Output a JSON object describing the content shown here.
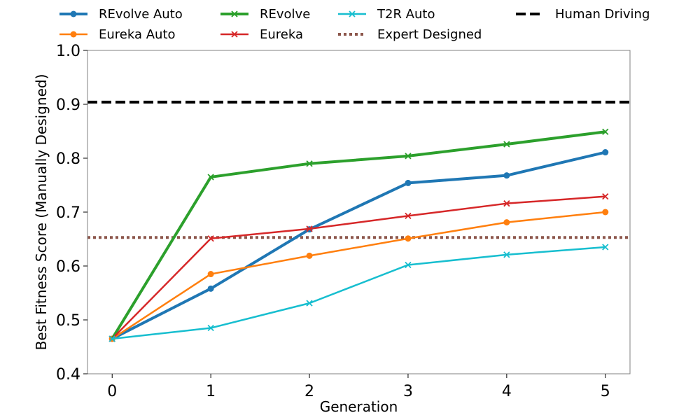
{
  "chart_data": {
    "type": "line",
    "title": "",
    "xlabel": "Generation",
    "ylabel": "Best Fitness Score (Manually Designed)",
    "x": [
      0,
      1,
      2,
      3,
      4,
      5
    ],
    "xlim": [
      -0.25,
      5.25
    ],
    "ylim": [
      0.4,
      1.0
    ],
    "x_ticks": [
      "0",
      "1",
      "2",
      "3",
      "4",
      "5"
    ],
    "y_ticks": [
      "0.4",
      "0.5",
      "0.6",
      "0.7",
      "0.8",
      "0.9",
      "1.0"
    ],
    "grid": false,
    "legend_position": "top",
    "series": [
      {
        "name": "REvolve Auto",
        "color": "#1f77b4",
        "marker": "circle",
        "style": "thick",
        "values": [
          0.465,
          0.558,
          0.668,
          0.754,
          0.768,
          0.811
        ]
      },
      {
        "name": "Eureka Auto",
        "color": "#ff7f0e",
        "marker": "circle",
        "style": "normal",
        "values": [
          0.465,
          0.585,
          0.619,
          0.651,
          0.681,
          0.7
        ]
      },
      {
        "name": "REvolve",
        "color": "#2ca02c",
        "marker": "x",
        "style": "thick",
        "values": [
          0.465,
          0.765,
          0.79,
          0.804,
          0.826,
          0.849
        ]
      },
      {
        "name": "Eureka",
        "color": "#d62728",
        "marker": "x",
        "style": "normal",
        "values": [
          0.465,
          0.651,
          0.669,
          0.693,
          0.716,
          0.729
        ]
      },
      {
        "name": "T2R Auto",
        "color": "#17becf",
        "marker": "x",
        "style": "normal",
        "values": [
          0.465,
          0.485,
          0.531,
          0.602,
          0.621,
          0.635
        ]
      }
    ],
    "reference_lines": [
      {
        "name": "Human Driving",
        "color": "#000000",
        "dash": "dashed",
        "value": 0.904
      },
      {
        "name": "Expert Designed",
        "color": "#8c564b",
        "dash": "dotted",
        "value": 0.653
      }
    ],
    "legend_order": [
      "REvolve Auto",
      "Eureka Auto",
      "REvolve",
      "Eureka",
      "T2R Auto",
      "Expert Designed",
      "Human Driving"
    ]
  }
}
